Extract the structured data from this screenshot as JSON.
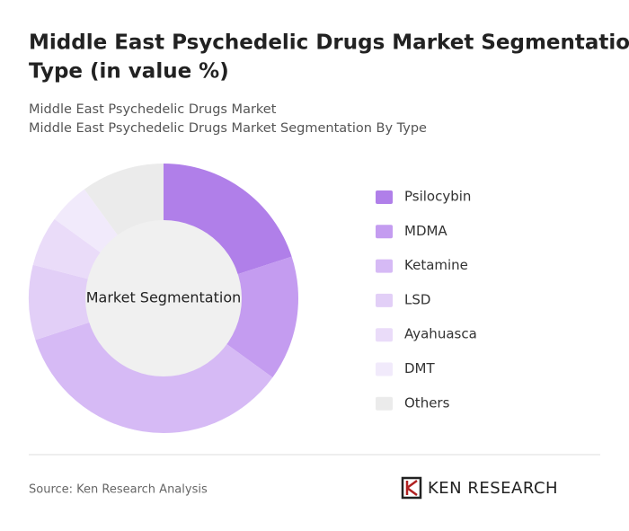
{
  "chart_data": {
    "type": "donut",
    "title": "Middle East Psychedelic Drugs Market Segmentation By Type (in value %)",
    "subtitle": [
      "Middle East Psychedelic Drugs Market",
      "Middle East Psychedelic Drugs Market Segmentation By Type"
    ],
    "center_label": "Market Segmentation",
    "categories": [
      "Psilocybin",
      "MDMA",
      "Ketamine",
      "LSD",
      "Ayahuasca",
      "DMT",
      "Others"
    ],
    "values": [
      20,
      15,
      35,
      9,
      6,
      5,
      10
    ],
    "colors": [
      "#b07fe9",
      "#c49cf0",
      "#d6baf5",
      "#e2cff7",
      "#eadcf9",
      "#f1eafb",
      "#ebebeb"
    ],
    "source": "Source: Ken Research Analysis",
    "brand": "KEN RESEARCH"
  }
}
